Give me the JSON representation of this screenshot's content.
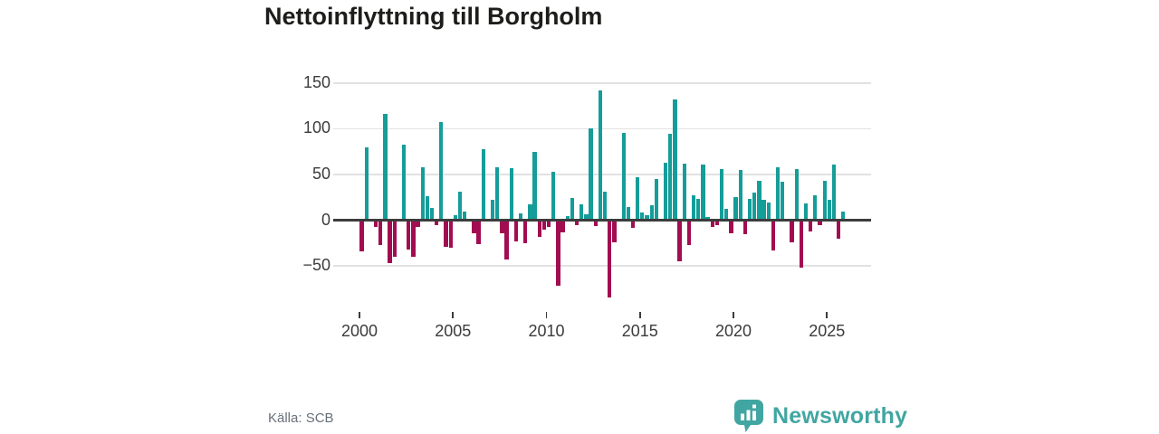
{
  "title": "Nettoinflyttning till Borgholm",
  "source": {
    "label": "Källa: SCB"
  },
  "branding": {
    "name": "Newsworthy",
    "color": "#41a6a2",
    "icon": "bar-chart-speech-bubble"
  },
  "chart_data": {
    "type": "bar",
    "title": "Nettoinflyttning till Borgholm",
    "frequency": "quarterly",
    "period_start": "2000-Q1",
    "period_end": "2025-Q4",
    "values": [
      -34,
      80,
      0,
      -7,
      -27,
      116,
      -47,
      -40,
      0,
      83,
      -32,
      -40,
      -7,
      58,
      26,
      13,
      -5,
      107,
      -29,
      -30,
      5,
      31,
      9,
      0,
      -14,
      -26,
      78,
      0,
      22,
      58,
      -14,
      -43,
      57,
      -23,
      7,
      -25,
      17,
      75,
      -18,
      -10,
      -7,
      53,
      -72,
      -13,
      4,
      24,
      -5,
      17,
      6,
      100,
      -6,
      142,
      31,
      -85,
      -24,
      0,
      95,
      14,
      -8,
      47,
      8,
      5,
      16,
      45,
      0,
      63,
      94,
      132,
      -45,
      62,
      -27,
      27,
      23,
      61,
      3,
      -7,
      -5,
      56,
      12,
      -14,
      25,
      55,
      -15,
      23,
      30,
      43,
      22,
      19,
      -33,
      58,
      42,
      0,
      -24,
      56,
      -52,
      18,
      -12,
      27,
      -5,
      43,
      22,
      61,
      -20,
      9
    ],
    "y_ticks": [
      150,
      100,
      50,
      0,
      -50
    ],
    "y_tick_labels": [
      "150",
      "100",
      "50",
      "0",
      "−50"
    ],
    "x_tick_years": [
      2000,
      2005,
      2010,
      2015,
      2020,
      2025
    ],
    "x_tick_labels": [
      "2000",
      "2005",
      "2010",
      "2015",
      "2020",
      "2025"
    ],
    "ylim": [
      -95,
      157
    ],
    "grid": true,
    "legend": false,
    "positive_color": "#159d99",
    "negative_color": "#a20d51"
  }
}
